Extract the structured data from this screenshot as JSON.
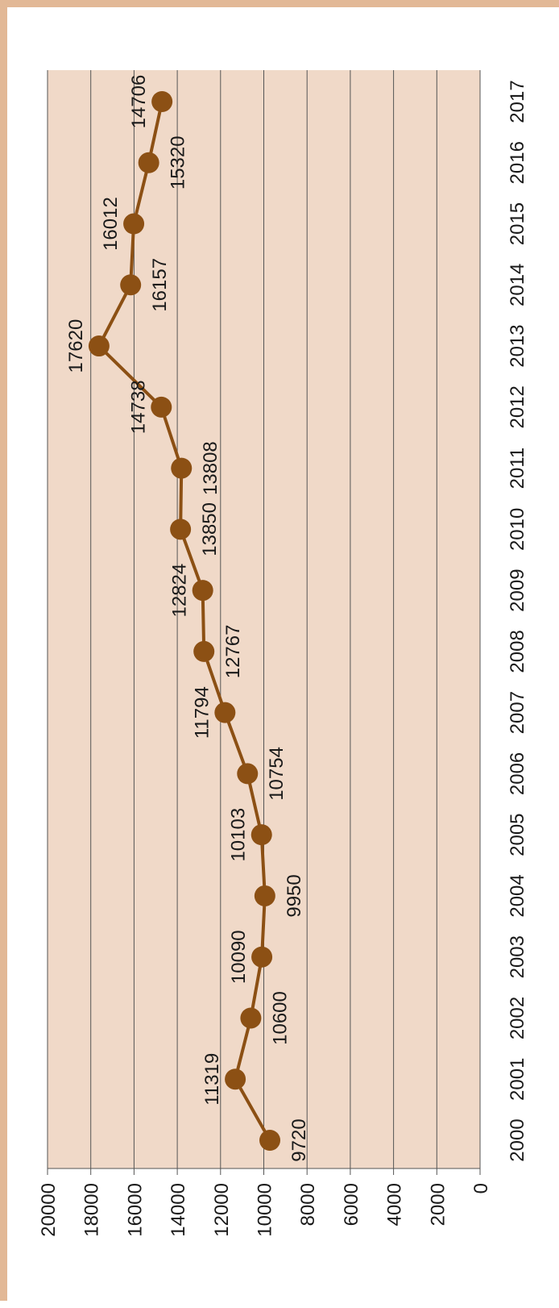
{
  "chart_data": {
    "type": "line",
    "orientation": "rotated-90",
    "categories": [
      "2000",
      "2001",
      "2002",
      "2003",
      "2004",
      "2005",
      "2006",
      "2007",
      "2008",
      "2009",
      "2010",
      "2011",
      "2012",
      "2013",
      "2014",
      "2015",
      "2016",
      "2017"
    ],
    "values": [
      9720,
      11319,
      10600,
      10090,
      9950,
      10103,
      10754,
      11794,
      12767,
      12824,
      13850,
      13808,
      14738,
      17620,
      16157,
      16012,
      15320,
      14706
    ],
    "value_labels": [
      "9720",
      "11319",
      "10600",
      "10090",
      "9950",
      "10103",
      "10754",
      "11794",
      "12767",
      "12824",
      "13850",
      "13808",
      "14738",
      "17620",
      "16157",
      "16012",
      "15320",
      "14706"
    ],
    "label_side": [
      "after",
      "before",
      "after",
      "before",
      "after",
      "before",
      "after",
      "before",
      "after",
      "before",
      "after",
      "after",
      "before",
      "before",
      "after",
      "before",
      "after",
      "before"
    ],
    "ylim": [
      0,
      20000
    ],
    "yticks": [
      0,
      2000,
      4000,
      6000,
      8000,
      10000,
      12000,
      14000,
      16000,
      18000,
      20000
    ],
    "ytick_labels": [
      "0",
      "2000",
      "4000",
      "6000",
      "8000",
      "10000",
      "12000",
      "14000",
      "16000",
      "18000",
      "20000"
    ],
    "grid": true,
    "colors": {
      "plot_background": "#f0d9c8",
      "frame": "#e2b896",
      "line": "#8c5014",
      "marker": "#8c5014",
      "gridline": "#555555"
    }
  }
}
